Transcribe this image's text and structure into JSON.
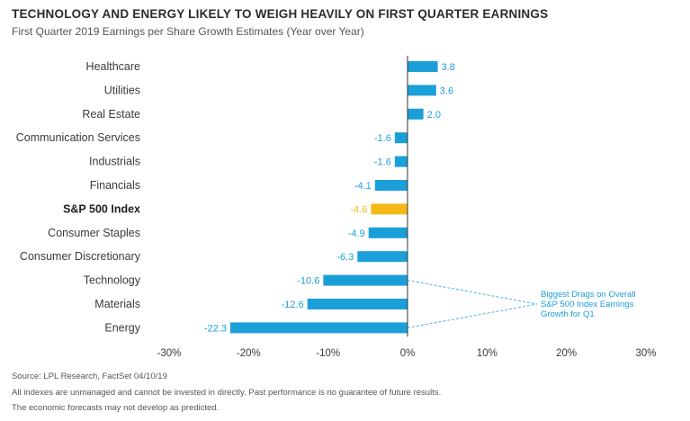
{
  "header": {
    "title": "TECHNOLOGY AND ENERGY LIKELY TO WEIGH HEAVILY ON FIRST QUARTER EARNINGS",
    "subtitle": "First Quarter 2019 Earnings per Share Growth Estimates (Year over Year)"
  },
  "colors": {
    "bar": "#1b9fd9",
    "highlight": "#f5b915",
    "label": "#1b9fd9",
    "highlight_label": "#f5b915",
    "callout": "#1b9fd9"
  },
  "chart_data": {
    "type": "bar",
    "orientation": "horizontal",
    "categories": [
      "Healthcare",
      "Utilities",
      "Real Estate",
      "Communication Services",
      "Industrials",
      "Financials",
      "S&P 500 Index",
      "Consumer Staples",
      "Consumer Discretionary",
      "Technology",
      "Materials",
      "Energy"
    ],
    "values": [
      3.8,
      3.6,
      2.0,
      -1.6,
      -1.6,
      -4.1,
      -4.6,
      -4.9,
      -6.3,
      -10.6,
      -12.6,
      -22.3
    ],
    "value_labels": [
      "3.8",
      "3.6",
      "2.0",
      "-1.6",
      "-1.6",
      "-4.1",
      "-4.6",
      "-4.9",
      "-6.3",
      "-10.6",
      "-12.6",
      "-22.3"
    ],
    "highlight_category": "S&P 500 Index",
    "xlim": [
      -30,
      30
    ],
    "x_ticks": [
      -30,
      -20,
      -10,
      0,
      10,
      20,
      30
    ],
    "x_tick_labels": [
      "-30%",
      "-20%",
      "-10%",
      "0%",
      "10%",
      "20%",
      "30%"
    ],
    "annotation": {
      "lines": [
        "Biggest Drags on Overall",
        "S&P 500 Index Earnings",
        "Growth for Q1"
      ],
      "targets": [
        "Technology",
        "Energy"
      ]
    },
    "grid": false,
    "legend": "none"
  },
  "footer": {
    "source": "Source: LPL Research, FactSet 04/10/19",
    "disclaimer1": "All indexes are unmanaged and cannot be invested in directly. Past performance is no guarantee of future results.",
    "disclaimer2": "The economic forecasts may not develop as predicted."
  }
}
